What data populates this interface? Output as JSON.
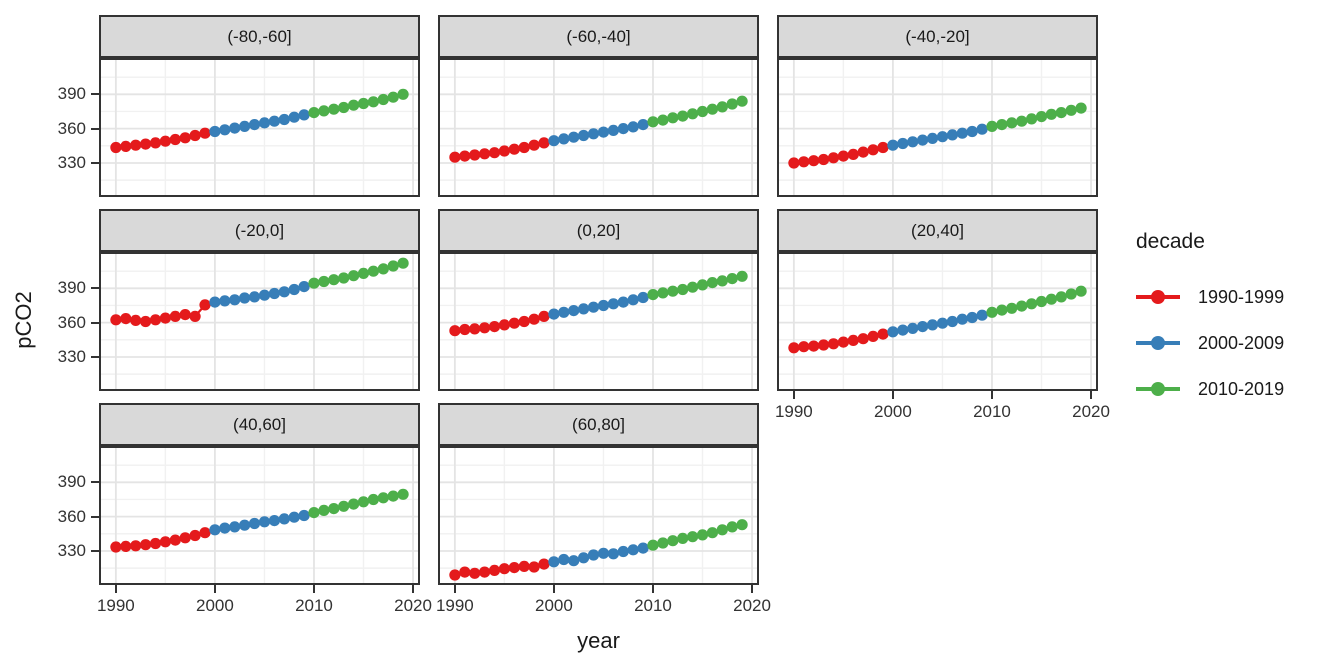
{
  "figure": {
    "y_axis_title": "pCO2",
    "x_axis_title": "year",
    "legend": {
      "title": "decade",
      "entries": [
        {
          "label": "1990-1999",
          "color": "#E41A1C"
        },
        {
          "label": "2000-2009",
          "color": "#377EB8"
        },
        {
          "label": "2010-2019",
          "color": "#4DAF4A"
        }
      ]
    }
  },
  "chart_data": {
    "type": "scatter",
    "title": "",
    "xlabel": "year",
    "ylabel": "pCO2",
    "legend_title": "decade",
    "legend_position": "right",
    "grid": "major+minor",
    "xlim": [
      1988.5,
      2020.5
    ],
    "ylim": [
      302,
      420
    ],
    "x_ticks": [
      1990,
      2000,
      2010,
      2020
    ],
    "x_minor_ticks": [
      1995,
      2005,
      2015
    ],
    "y_ticks": [
      330,
      360,
      390
    ],
    "y_minor_ticks": [
      315,
      345,
      375,
      405
    ],
    "years": [
      1990,
      1991,
      1992,
      1993,
      1994,
      1995,
      1996,
      1997,
      1998,
      1999,
      2000,
      2001,
      2002,
      2003,
      2004,
      2005,
      2006,
      2007,
      2008,
      2009,
      2010,
      2011,
      2012,
      2013,
      2014,
      2015,
      2016,
      2017,
      2018,
      2019
    ],
    "series": [
      {
        "name": "1990-1999",
        "color": "#E41A1C",
        "year_range": [
          1990,
          1999
        ]
      },
      {
        "name": "2000-2009",
        "color": "#377EB8",
        "year_range": [
          2000,
          2009
        ]
      },
      {
        "name": "2010-2019",
        "color": "#4DAF4A",
        "year_range": [
          2010,
          2019
        ]
      }
    ],
    "facets": [
      {
        "label": "(-80,-60]",
        "values": [
          343.5,
          344.5,
          345.5,
          346.5,
          347.5,
          349,
          350.5,
          352,
          354,
          356,
          357.5,
          359,
          360.5,
          362,
          363.5,
          365,
          366.5,
          368,
          370,
          372,
          374,
          375.5,
          377,
          378.5,
          380.5,
          382,
          383.5,
          385.5,
          387.5,
          390
        ]
      },
      {
        "label": "(-60,-40]",
        "values": [
          335,
          336,
          337,
          338,
          339,
          340.5,
          342,
          343.5,
          345.5,
          347.5,
          349.5,
          351,
          352.5,
          354,
          355.5,
          357,
          358.5,
          360,
          361.5,
          363.5,
          366,
          367.5,
          369.5,
          371,
          373,
          375,
          377,
          379,
          381.5,
          384
        ]
      },
      {
        "label": "(-40,-20]",
        "values": [
          330,
          331,
          332,
          333,
          334.5,
          336,
          337.5,
          339.5,
          341.5,
          343.5,
          345.5,
          347,
          348.5,
          350,
          351.5,
          353,
          354.5,
          356,
          357.5,
          359.5,
          362,
          363.5,
          365,
          366.5,
          368.5,
          370.5,
          372.5,
          374,
          376,
          378
        ]
      },
      {
        "label": "(-20,0]",
        "values": [
          362.5,
          363.5,
          362,
          361,
          362.5,
          364,
          365.5,
          367,
          365.5,
          375.5,
          378,
          379,
          380,
          381.5,
          382.5,
          384,
          385.5,
          387,
          389,
          391.5,
          394.5,
          396,
          397.5,
          399,
          401,
          403,
          405,
          407,
          409.5,
          412
        ]
      },
      {
        "label": "(0,20]",
        "values": [
          353,
          354,
          354.5,
          355.5,
          356.5,
          358,
          359.5,
          361,
          363,
          365.5,
          367.5,
          369,
          370.5,
          372,
          373.5,
          375,
          376.5,
          378,
          380,
          382,
          384.5,
          386,
          387.5,
          389,
          391,
          393,
          395,
          396.5,
          398.5,
          400.5
        ]
      },
      {
        "label": "(20,40]",
        "values": [
          338,
          339,
          339.5,
          340.5,
          341.5,
          343,
          344.5,
          346,
          348,
          350,
          352,
          353.5,
          355,
          356.5,
          358,
          359.5,
          361,
          363,
          364.5,
          366.5,
          369,
          371,
          372.5,
          374.5,
          376.5,
          378.5,
          380.5,
          382.5,
          385,
          387.5
        ]
      },
      {
        "label": "(40,60]",
        "values": [
          333.5,
          334,
          334.5,
          335.5,
          336.5,
          338,
          339.5,
          341.5,
          343.5,
          346,
          348.5,
          350,
          351,
          352.5,
          354,
          355.5,
          356.5,
          358,
          359.5,
          361,
          363.5,
          365.5,
          367,
          369,
          371,
          373,
          375,
          376.5,
          378,
          379.5
        ]
      },
      {
        "label": "(60,80]",
        "values": [
          309,
          311.5,
          310.5,
          311.5,
          313,
          314.5,
          315.5,
          316.5,
          316,
          318.5,
          320.5,
          322.5,
          321.5,
          324,
          326.5,
          328,
          327.5,
          329.5,
          331,
          332.5,
          335,
          337,
          339,
          341,
          342.5,
          344,
          346,
          348.5,
          351,
          353
        ]
      }
    ],
    "theme": {
      "strip_fill": "#D9D9D9",
      "panel_border": "#333333",
      "grid_major": "#E4E4E4",
      "grid_minor": "#F1F1F1",
      "point_radius": 5.6,
      "line_width": 2.2
    }
  }
}
